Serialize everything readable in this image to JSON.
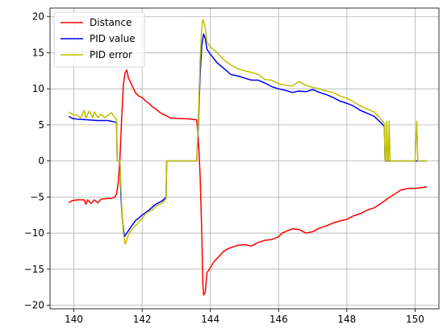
{
  "chart_data": {
    "type": "line",
    "title": "",
    "xlabel": "",
    "ylabel": "",
    "xlim": [
      139.3,
      150.7
    ],
    "ylim": [
      -20.5,
      21.2
    ],
    "xticks": [
      140,
      142,
      144,
      146,
      148,
      150
    ],
    "yticks": [
      -20,
      -15,
      -10,
      -5,
      0,
      5,
      10,
      15,
      20
    ],
    "grid": true,
    "legend_position": "top-left",
    "series": [
      {
        "name": "Distance",
        "color": "#ff0000",
        "points": [
          [
            139.85,
            -5.8
          ],
          [
            139.95,
            -5.5
          ],
          [
            140.1,
            -5.4
          ],
          [
            140.3,
            -5.4
          ],
          [
            140.35,
            -6.0
          ],
          [
            140.4,
            -5.4
          ],
          [
            140.5,
            -5.9
          ],
          [
            140.6,
            -5.4
          ],
          [
            140.7,
            -5.8
          ],
          [
            140.8,
            -5.3
          ],
          [
            141.0,
            -5.2
          ],
          [
            141.1,
            -5.2
          ],
          [
            141.2,
            -5.0
          ],
          [
            141.25,
            -4.6
          ],
          [
            141.3,
            -3.0
          ],
          [
            141.35,
            0.5
          ],
          [
            141.4,
            6.0
          ],
          [
            141.45,
            10.5
          ],
          [
            141.5,
            12.2
          ],
          [
            141.55,
            12.6
          ],
          [
            141.6,
            11.5
          ],
          [
            141.7,
            10.5
          ],
          [
            141.8,
            9.5
          ],
          [
            141.9,
            9.0
          ],
          [
            142.0,
            8.8
          ],
          [
            142.1,
            8.3
          ],
          [
            142.2,
            8.0
          ],
          [
            142.3,
            7.5
          ],
          [
            142.4,
            7.2
          ],
          [
            142.5,
            6.8
          ],
          [
            142.6,
            6.5
          ],
          [
            142.7,
            6.3
          ],
          [
            142.8,
            6.0
          ],
          [
            143.0,
            5.9
          ],
          [
            143.3,
            5.85
          ],
          [
            143.6,
            5.7
          ],
          [
            143.65,
            3.0
          ],
          [
            143.7,
            -2.0
          ],
          [
            143.75,
            -10.0
          ],
          [
            143.78,
            -17.0
          ],
          [
            143.8,
            -18.6
          ],
          [
            143.85,
            -18.2
          ],
          [
            143.9,
            -15.5
          ],
          [
            144.0,
            -14.8
          ],
          [
            144.1,
            -14.0
          ],
          [
            144.2,
            -13.5
          ],
          [
            144.3,
            -13.0
          ],
          [
            144.4,
            -12.5
          ],
          [
            144.5,
            -12.2
          ],
          [
            144.6,
            -12.0
          ],
          [
            144.8,
            -11.7
          ],
          [
            145.0,
            -11.6
          ],
          [
            145.2,
            -11.8
          ],
          [
            145.4,
            -11.3
          ],
          [
            145.6,
            -11.0
          ],
          [
            145.8,
            -10.9
          ],
          [
            146.0,
            -10.5
          ],
          [
            146.1,
            -10.0
          ],
          [
            146.2,
            -9.8
          ],
          [
            146.4,
            -9.4
          ],
          [
            146.6,
            -9.5
          ],
          [
            146.8,
            -10.0
          ],
          [
            147.0,
            -9.8
          ],
          [
            147.2,
            -9.3
          ],
          [
            147.4,
            -9.0
          ],
          [
            147.6,
            -8.6
          ],
          [
            147.8,
            -8.3
          ],
          [
            148.0,
            -8.1
          ],
          [
            148.2,
            -7.6
          ],
          [
            148.4,
            -7.3
          ],
          [
            148.6,
            -6.8
          ],
          [
            148.8,
            -6.5
          ],
          [
            149.0,
            -5.9
          ],
          [
            149.2,
            -5.2
          ],
          [
            149.4,
            -4.6
          ],
          [
            149.6,
            -4.0
          ],
          [
            149.8,
            -3.8
          ],
          [
            150.0,
            -3.8
          ],
          [
            150.2,
            -3.7
          ],
          [
            150.35,
            -3.6
          ]
        ]
      },
      {
        "name": "PID value",
        "color": "#0000ff",
        "points": [
          [
            139.85,
            6.2
          ],
          [
            139.95,
            5.9
          ],
          [
            140.1,
            5.8
          ],
          [
            140.4,
            5.7
          ],
          [
            140.7,
            5.6
          ],
          [
            141.0,
            5.6
          ],
          [
            141.2,
            5.4
          ],
          [
            141.25,
            5.3
          ],
          [
            141.27,
            0.0
          ],
          [
            141.35,
            0.0
          ],
          [
            141.38,
            -5.0
          ],
          [
            141.42,
            -8.0
          ],
          [
            141.48,
            -10.5
          ],
          [
            141.55,
            -10.0
          ],
          [
            141.65,
            -9.3
          ],
          [
            141.8,
            -8.3
          ],
          [
            142.0,
            -7.5
          ],
          [
            142.2,
            -6.8
          ],
          [
            142.4,
            -6.0
          ],
          [
            142.6,
            -5.5
          ],
          [
            142.7,
            -5.0
          ],
          [
            142.72,
            0.0
          ],
          [
            143.0,
            0.0
          ],
          [
            143.3,
            0.0
          ],
          [
            143.6,
            0.0
          ],
          [
            143.65,
            5.0
          ],
          [
            143.7,
            12.0
          ],
          [
            143.75,
            16.0
          ],
          [
            143.8,
            17.6
          ],
          [
            143.85,
            17.0
          ],
          [
            143.9,
            15.5
          ],
          [
            144.0,
            14.8
          ],
          [
            144.2,
            13.6
          ],
          [
            144.4,
            12.8
          ],
          [
            144.6,
            12.0
          ],
          [
            144.8,
            11.8
          ],
          [
            145.0,
            11.5
          ],
          [
            145.2,
            11.2
          ],
          [
            145.4,
            11.2
          ],
          [
            145.6,
            10.8
          ],
          [
            145.8,
            10.3
          ],
          [
            146.0,
            10.0
          ],
          [
            146.2,
            9.8
          ],
          [
            146.4,
            9.5
          ],
          [
            146.6,
            9.7
          ],
          [
            146.8,
            9.6
          ],
          [
            147.0,
            9.9
          ],
          [
            147.2,
            9.5
          ],
          [
            147.4,
            9.2
          ],
          [
            147.6,
            8.8
          ],
          [
            147.8,
            8.3
          ],
          [
            148.0,
            8.0
          ],
          [
            148.2,
            7.6
          ],
          [
            148.4,
            7.0
          ],
          [
            148.6,
            6.6
          ],
          [
            148.8,
            6.2
          ],
          [
            149.0,
            5.3
          ],
          [
            149.1,
            4.8
          ],
          [
            149.12,
            0.0
          ],
          [
            150.35,
            0.0
          ]
        ]
      },
      {
        "name": "PID error",
        "color": "#bfbf00",
        "points": [
          [
            139.85,
            6.8
          ],
          [
            139.95,
            6.5
          ],
          [
            140.1,
            6.3
          ],
          [
            140.2,
            6.0
          ],
          [
            140.3,
            7.0
          ],
          [
            140.35,
            6.0
          ],
          [
            140.45,
            6.9
          ],
          [
            140.55,
            6.0
          ],
          [
            140.6,
            6.8
          ],
          [
            140.7,
            6.0
          ],
          [
            140.8,
            6.5
          ],
          [
            140.9,
            6.0
          ],
          [
            141.0,
            6.3
          ],
          [
            141.1,
            6.7
          ],
          [
            141.2,
            6.0
          ],
          [
            141.25,
            5.8
          ],
          [
            141.27,
            0.0
          ],
          [
            141.35,
            0.0
          ],
          [
            141.4,
            -6.0
          ],
          [
            141.45,
            -10.0
          ],
          [
            141.5,
            -11.5
          ],
          [
            141.55,
            -11.0
          ],
          [
            141.6,
            -10.2
          ],
          [
            141.7,
            -9.5
          ],
          [
            141.8,
            -9.0
          ],
          [
            141.9,
            -8.5
          ],
          [
            142.0,
            -8.0
          ],
          [
            142.1,
            -7.3
          ],
          [
            142.2,
            -7.0
          ],
          [
            142.3,
            -6.8
          ],
          [
            142.4,
            -6.3
          ],
          [
            142.5,
            -6.0
          ],
          [
            142.6,
            -5.8
          ],
          [
            142.7,
            -5.3
          ],
          [
            142.72,
            0.0
          ],
          [
            143.0,
            0.0
          ],
          [
            143.3,
            0.0
          ],
          [
            143.6,
            0.0
          ],
          [
            143.65,
            6.0
          ],
          [
            143.7,
            14.0
          ],
          [
            143.75,
            18.5
          ],
          [
            143.78,
            19.6
          ],
          [
            143.85,
            18.5
          ],
          [
            143.9,
            16.5
          ],
          [
            144.0,
            15.8
          ],
          [
            144.2,
            15.0
          ],
          [
            144.4,
            14.0
          ],
          [
            144.6,
            13.3
          ],
          [
            144.8,
            12.8
          ],
          [
            145.0,
            12.5
          ],
          [
            145.2,
            12.3
          ],
          [
            145.4,
            12.0
          ],
          [
            145.6,
            11.3
          ],
          [
            145.8,
            11.2
          ],
          [
            146.0,
            10.7
          ],
          [
            146.2,
            10.5
          ],
          [
            146.4,
            10.4
          ],
          [
            146.6,
            11.0
          ],
          [
            146.8,
            10.5
          ],
          [
            147.0,
            10.2
          ],
          [
            147.2,
            10.0
          ],
          [
            147.4,
            9.7
          ],
          [
            147.6,
            9.5
          ],
          [
            147.8,
            9.0
          ],
          [
            148.0,
            8.7
          ],
          [
            148.2,
            8.2
          ],
          [
            148.4,
            7.6
          ],
          [
            148.6,
            7.2
          ],
          [
            148.8,
            6.8
          ],
          [
            149.0,
            5.8
          ],
          [
            149.1,
            5.2
          ],
          [
            149.12,
            0.0
          ],
          [
            149.15,
            0.0
          ],
          [
            149.17,
            5.5
          ],
          [
            149.2,
            0.0
          ],
          [
            149.22,
            0.0
          ],
          [
            149.24,
            5.5
          ],
          [
            149.27,
            0.0
          ],
          [
            150.0,
            0.0
          ],
          [
            150.05,
            5.5
          ],
          [
            150.08,
            0.0
          ],
          [
            150.35,
            0.0
          ]
        ]
      }
    ]
  }
}
